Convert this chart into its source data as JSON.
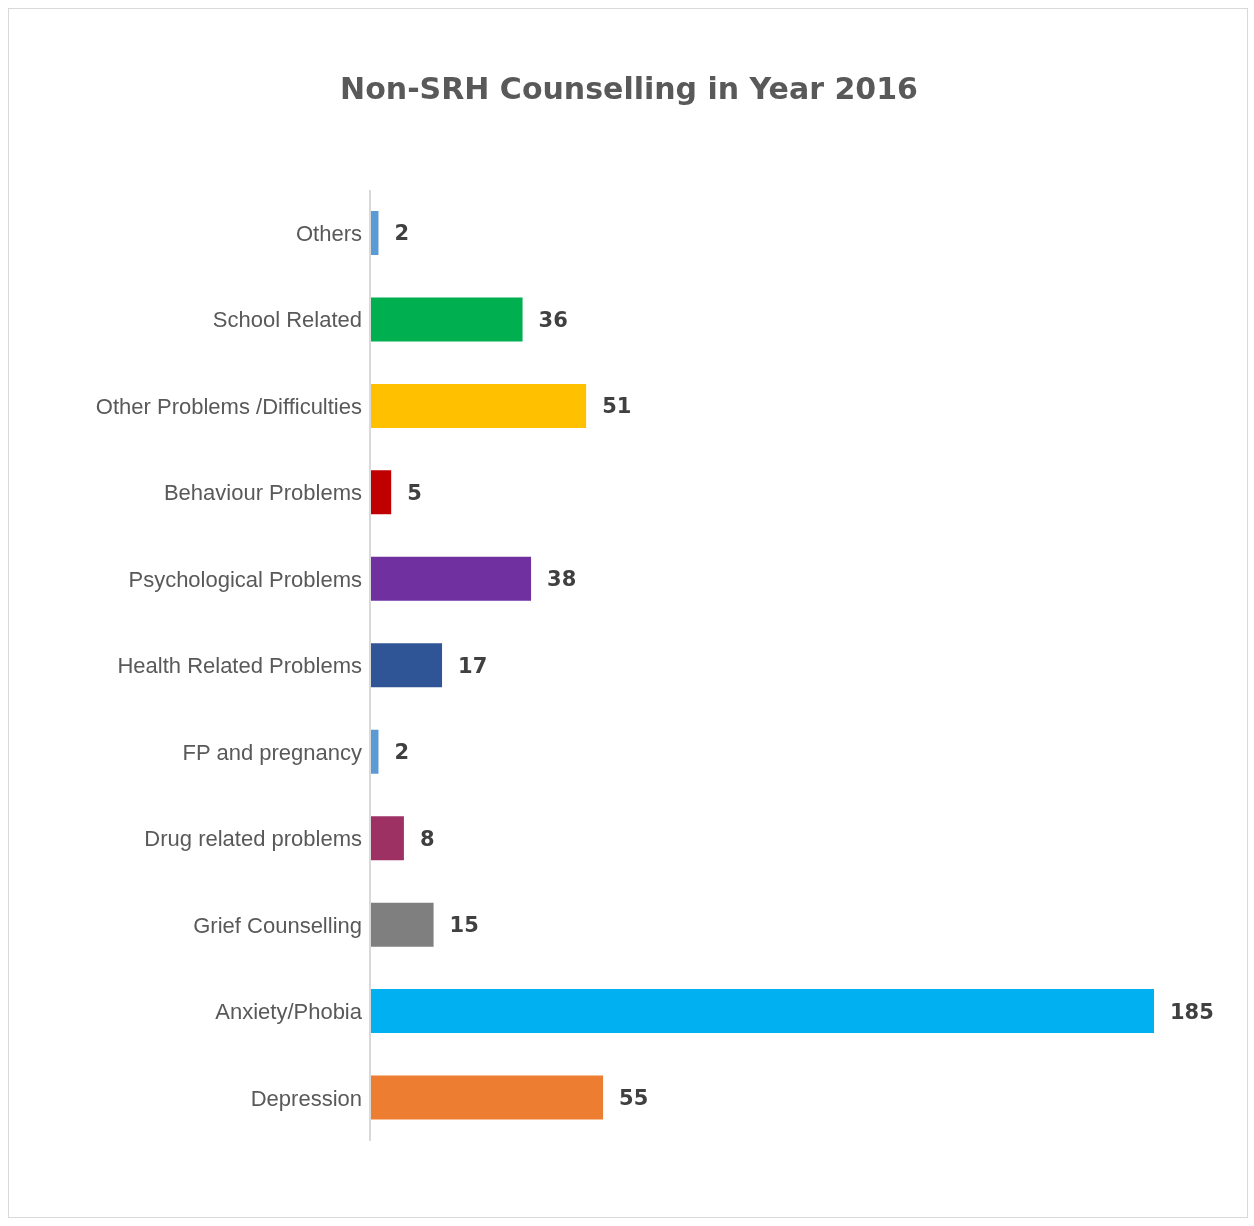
{
  "chart_data": {
    "type": "bar",
    "orientation": "horizontal",
    "title": "Non-SRH Counselling in Year 2016",
    "categories": [
      "Others",
      "School Related",
      "Other Problems /Difficulties",
      "Behaviour Problems",
      "Psychological Problems",
      "Health Related Problems",
      "FP and pregnancy",
      "Drug related problems",
      "Grief Counselling",
      "Anxiety/Phobia",
      "Depression"
    ],
    "values": [
      2,
      36,
      51,
      5,
      38,
      17,
      2,
      8,
      15,
      185,
      55
    ],
    "colors": [
      "#5b9bd5",
      "#00b050",
      "#ffc000",
      "#c00000",
      "#7030a0",
      "#2f5597",
      "#5b9bd5",
      "#9e3163",
      "#7f7f7f",
      "#00b0f0",
      "#ed7d31"
    ],
    "data_labels": true
  }
}
